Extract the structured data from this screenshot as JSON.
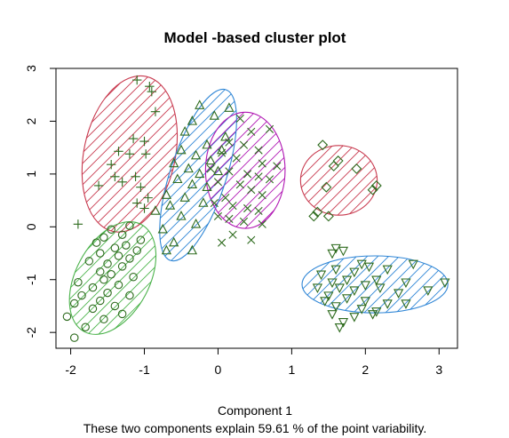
{
  "chart_data": {
    "type": "scatter",
    "title": "Model -based cluster plot",
    "xlabel": "Component 1",
    "subtitle": "These two components explain 59.61 % of the point variability.",
    "ylabel": "",
    "xlim": [
      -2.2,
      3.25
    ],
    "ylim": [
      -2.3,
      3.0
    ],
    "x_ticks": [
      -2,
      -1,
      0,
      1,
      2,
      3
    ],
    "y_ticks": [
      -2,
      -1,
      0,
      1,
      2,
      3
    ],
    "x_tick_labels": [
      "-2",
      "-1",
      "0",
      "1",
      "2",
      "3"
    ],
    "y_tick_labels": [
      "-2",
      "-1",
      "0",
      "1",
      "2",
      "3"
    ],
    "grid": false,
    "legend": "none",
    "point_color": "#2e6b1e",
    "clusters": [
      {
        "marker": "plus",
        "color": "#c8394e",
        "ellipse": {
          "cx": -1.2,
          "cy": 1.38,
          "rx": 0.62,
          "ry": 1.5,
          "angle": 12
        },
        "points": [
          [
            -1.1,
            2.78
          ],
          [
            -0.93,
            2.66
          ],
          [
            -0.9,
            2.56
          ],
          [
            -0.85,
            2.18
          ],
          [
            -1.15,
            1.67
          ],
          [
            -1.0,
            1.62
          ],
          [
            -1.35,
            1.43
          ],
          [
            -1.2,
            1.38
          ],
          [
            -0.98,
            1.38
          ],
          [
            -1.45,
            1.18
          ],
          [
            -1.4,
            0.95
          ],
          [
            -1.12,
            0.95
          ],
          [
            -1.3,
            0.85
          ],
          [
            -1.62,
            0.78
          ],
          [
            -1.05,
            0.75
          ],
          [
            -0.95,
            0.55
          ],
          [
            -1.1,
            0.45
          ],
          [
            -1.0,
            0.35
          ],
          [
            -1.9,
            0.05
          ]
        ]
      },
      {
        "marker": "triangle",
        "color": "#2f86d6",
        "ellipse": {
          "cx": -0.27,
          "cy": 0.98,
          "rx": 0.38,
          "ry": 1.7,
          "angle": 18
        },
        "points": [
          [
            -0.25,
            2.3
          ],
          [
            0.15,
            2.25
          ],
          [
            -0.05,
            2.1
          ],
          [
            -0.35,
            2.0
          ],
          [
            -0.45,
            1.8
          ],
          [
            0.1,
            1.7
          ],
          [
            -0.15,
            1.55
          ],
          [
            -0.5,
            1.45
          ],
          [
            0.05,
            1.45
          ],
          [
            -0.3,
            1.35
          ],
          [
            -0.1,
            1.25
          ],
          [
            -0.6,
            1.2
          ],
          [
            -0.4,
            1.1
          ],
          [
            0.0,
            1.05
          ],
          [
            -0.25,
            1.0
          ],
          [
            -0.55,
            0.9
          ],
          [
            -0.35,
            0.8
          ],
          [
            -0.15,
            0.75
          ],
          [
            -0.7,
            0.6
          ],
          [
            -0.45,
            0.55
          ],
          [
            -0.2,
            0.45
          ],
          [
            -0.65,
            0.4
          ],
          [
            -0.85,
            0.3
          ],
          [
            -0.5,
            0.2
          ],
          [
            -0.3,
            0.05
          ],
          [
            -0.75,
            -0.05
          ],
          [
            -0.6,
            -0.3
          ],
          [
            -0.35,
            -0.45
          ],
          [
            -0.7,
            -0.45
          ]
        ]
      },
      {
        "marker": "x",
        "color": "#b017b3",
        "ellipse": {
          "cx": 0.37,
          "cy": 1.07,
          "rx": 0.54,
          "ry": 1.1,
          "angle": 0
        },
        "points": [
          [
            0.3,
            2.05
          ],
          [
            0.45,
            1.8
          ],
          [
            0.7,
            1.85
          ],
          [
            0.15,
            1.6
          ],
          [
            0.35,
            1.55
          ],
          [
            0.55,
            1.45
          ],
          [
            0.05,
            1.4
          ],
          [
            0.25,
            1.3
          ],
          [
            0.6,
            1.2
          ],
          [
            0.8,
            1.15
          ],
          [
            -0.1,
            1.1
          ],
          [
            0.15,
            1.05
          ],
          [
            0.4,
            1.0
          ],
          [
            0.55,
            0.95
          ],
          [
            0.7,
            0.9
          ],
          [
            0.0,
            0.85
          ],
          [
            0.3,
            0.8
          ],
          [
            0.45,
            0.7
          ],
          [
            0.6,
            0.6
          ],
          [
            0.1,
            0.55
          ],
          [
            -0.05,
            0.45
          ],
          [
            0.2,
            0.4
          ],
          [
            0.4,
            0.35
          ],
          [
            0.55,
            0.3
          ],
          [
            0.0,
            0.2
          ],
          [
            0.15,
            0.15
          ],
          [
            0.35,
            0.1
          ],
          [
            0.6,
            0.05
          ],
          [
            0.2,
            -0.15
          ],
          [
            0.45,
            -0.25
          ],
          [
            0.05,
            -0.3
          ]
        ]
      },
      {
        "marker": "diamond",
        "color": "#c8394e",
        "ellipse": {
          "cx": 1.64,
          "cy": 0.88,
          "rx": 0.52,
          "ry": 0.66,
          "angle": 0
        },
        "points": [
          [
            1.42,
            1.55
          ],
          [
            1.63,
            1.25
          ],
          [
            1.57,
            1.15
          ],
          [
            1.88,
            1.1
          ],
          [
            1.47,
            0.75
          ],
          [
            2.15,
            0.78
          ],
          [
            2.1,
            0.7
          ],
          [
            1.35,
            0.28
          ],
          [
            1.3,
            0.2
          ],
          [
            1.5,
            0.2
          ]
        ]
      },
      {
        "marker": "circle",
        "color": "#4cb34c",
        "ellipse": {
          "cx": -1.43,
          "cy": -0.97,
          "rx": 0.5,
          "ry": 1.15,
          "angle": 28
        },
        "points": [
          [
            -1.2,
            0.02
          ],
          [
            -1.45,
            -0.05
          ],
          [
            -1.3,
            -0.15
          ],
          [
            -1.55,
            -0.2
          ],
          [
            -1.05,
            -0.25
          ],
          [
            -1.65,
            -0.3
          ],
          [
            -1.25,
            -0.35
          ],
          [
            -1.4,
            -0.4
          ],
          [
            -1.1,
            -0.45
          ],
          [
            -1.6,
            -0.5
          ],
          [
            -1.35,
            -0.55
          ],
          [
            -1.2,
            -0.6
          ],
          [
            -1.75,
            -0.65
          ],
          [
            -1.5,
            -0.7
          ],
          [
            -1.3,
            -0.75
          ],
          [
            -1.6,
            -0.85
          ],
          [
            -1.45,
            -0.9
          ],
          [
            -1.15,
            -0.95
          ],
          [
            -1.55,
            -1.0
          ],
          [
            -1.9,
            -1.05
          ],
          [
            -1.35,
            -1.1
          ],
          [
            -1.7,
            -1.15
          ],
          [
            -1.5,
            -1.25
          ],
          [
            -1.2,
            -1.3
          ],
          [
            -1.85,
            -1.3
          ],
          [
            -1.6,
            -1.4
          ],
          [
            -1.4,
            -1.5
          ],
          [
            -1.95,
            -1.45
          ],
          [
            -1.7,
            -1.55
          ],
          [
            -1.3,
            -1.65
          ],
          [
            -2.05,
            -1.7
          ],
          [
            -1.55,
            -1.75
          ],
          [
            -1.8,
            -1.9
          ],
          [
            -1.95,
            -2.1
          ]
        ]
      },
      {
        "marker": "triangle-down",
        "color": "#2f86d6",
        "ellipse": {
          "cx": 2.13,
          "cy": -1.09,
          "rx": 0.99,
          "ry": 0.54,
          "angle": 0
        },
        "points": [
          [
            1.6,
            -0.4
          ],
          [
            1.7,
            -0.45
          ],
          [
            1.55,
            -0.5
          ],
          [
            1.95,
            -0.7
          ],
          [
            2.05,
            -0.75
          ],
          [
            1.6,
            -0.8
          ],
          [
            1.85,
            -0.85
          ],
          [
            2.3,
            -0.8
          ],
          [
            2.65,
            -0.7
          ],
          [
            2.55,
            -1.05
          ],
          [
            1.4,
            -0.9
          ],
          [
            1.75,
            -1.0
          ],
          [
            2.15,
            -1.0
          ],
          [
            1.55,
            -1.05
          ],
          [
            2.0,
            -1.1
          ],
          [
            3.08,
            -1.05
          ],
          [
            1.35,
            -1.15
          ],
          [
            1.65,
            -1.15
          ],
          [
            1.85,
            -1.2
          ],
          [
            2.2,
            -1.15
          ],
          [
            2.45,
            -1.25
          ],
          [
            2.85,
            -1.2
          ],
          [
            1.5,
            -1.3
          ],
          [
            1.75,
            -1.35
          ],
          [
            2.0,
            -1.4
          ],
          [
            2.3,
            -1.45
          ],
          [
            1.6,
            -1.5
          ],
          [
            1.95,
            -1.55
          ],
          [
            2.15,
            -1.6
          ],
          [
            1.55,
            -1.65
          ],
          [
            1.85,
            -1.7
          ],
          [
            2.1,
            -1.65
          ],
          [
            1.7,
            -1.8
          ],
          [
            1.65,
            -1.9
          ],
          [
            2.55,
            -1.45
          ],
          [
            1.45,
            -1.4
          ]
        ]
      }
    ]
  }
}
